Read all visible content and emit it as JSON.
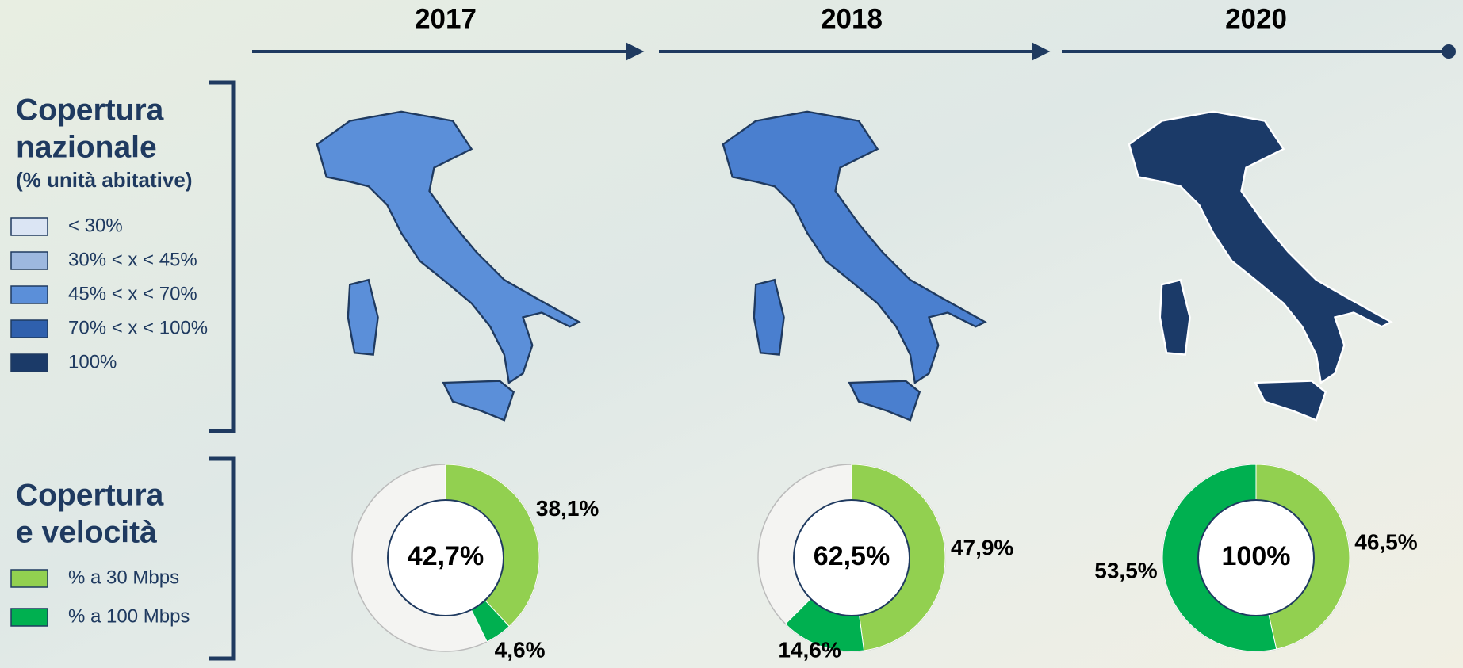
{
  "coverage_legend": {
    "title_line1": "Copertura",
    "title_line2": "nazionale",
    "subtitle": "(% unità abitative)",
    "items": [
      {
        "label": "< 30%",
        "color": "#dbe5f4"
      },
      {
        "label": "30% < x < 45%",
        "color": "#9db8df"
      },
      {
        "label": "45% < x < 70%",
        "color": "#5b8fd9"
      },
      {
        "label": "70% < x < 100%",
        "color": "#2f60ad"
      },
      {
        "label": "100%",
        "color": "#1b3a68"
      }
    ]
  },
  "speed_legend": {
    "title_line1": "Copertura",
    "title_line2": "e velocità",
    "items": [
      {
        "label": "% a 30 Mbps",
        "color": "#92d050"
      },
      {
        "label": "% a 100 Mbps",
        "color": "#00b050"
      }
    ]
  },
  "chart_data": [
    {
      "type": "donut",
      "title": "2017",
      "center_label": "42,7%",
      "values": [
        38.1,
        4.6
      ],
      "value_labels": [
        "38,1%",
        "4,6%"
      ],
      "colors": [
        "#92d050",
        "#00b050"
      ]
    },
    {
      "type": "donut",
      "title": "2018",
      "center_label": "62,5%",
      "values": [
        47.9,
        14.6
      ],
      "value_labels": [
        "47,9%",
        "14,6%"
      ],
      "colors": [
        "#92d050",
        "#00b050"
      ]
    },
    {
      "type": "donut",
      "title": "2020",
      "center_label": "100%",
      "values": [
        46.5,
        53.5
      ],
      "value_labels": [
        "46,5%",
        "53,5%"
      ],
      "colors": [
        "#92d050",
        "#00b050"
      ]
    }
  ]
}
